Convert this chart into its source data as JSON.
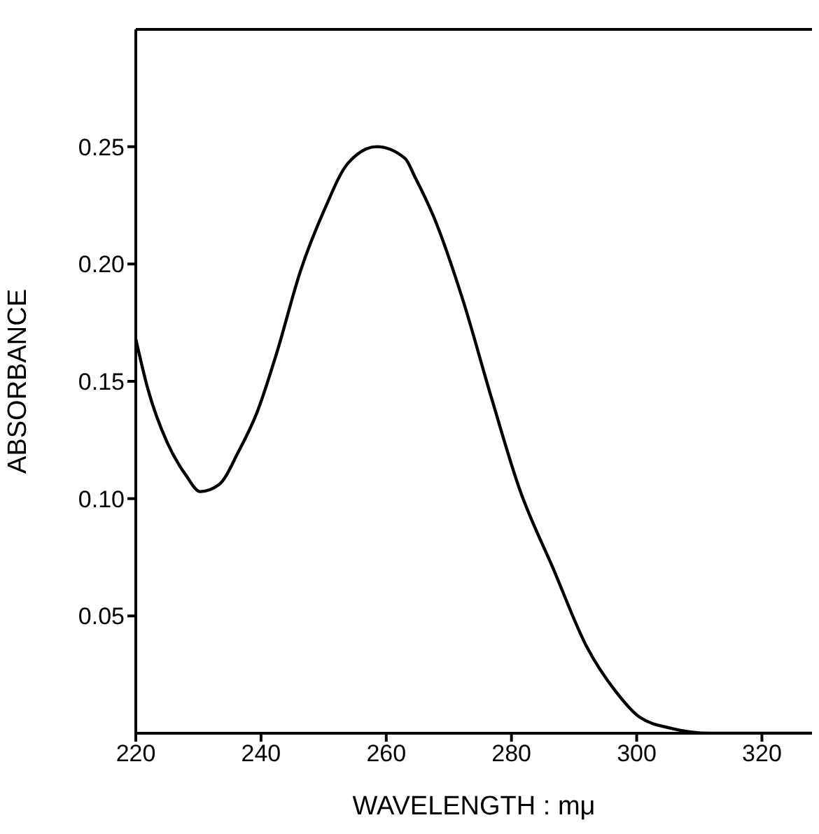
{
  "chart_data": {
    "type": "line",
    "xlabel": "WAVELENGTH : mμ",
    "ylabel": "ABSORBANCE",
    "xlim": [
      220,
      328
    ],
    "ylim": [
      0,
      0.3
    ],
    "xticks": [
      220,
      240,
      260,
      280,
      300,
      320
    ],
    "yticks": [
      0.05,
      {
        "value": 0.1,
        "label": "0.10"
      },
      0.15,
      {
        "value": 0.2,
        "label": "0.20"
      },
      0.25
    ],
    "grid": false,
    "legend": false,
    "marker": "none",
    "line_style": "solid",
    "series": [
      {
        "color": "#000000",
        "x": [
          220,
          221.9,
          225,
          228,
          230.3,
          233.3,
          236.4,
          239.4,
          242.5,
          246.3,
          250.1,
          253.9,
          258.5,
          263,
          264.6,
          267.6,
          272.2,
          276.8,
          281.3,
          286.7,
          292,
          296.6,
          300.4,
          305.7,
          311.8,
          328
        ],
        "values": [
          0.168,
          0.147,
          0.124,
          0.11,
          0.103,
          0.106,
          0.12,
          0.137,
          0.162,
          0.197,
          0.223,
          0.243,
          0.25,
          0.245,
          0.237,
          0.22,
          0.185,
          0.143,
          0.104,
          0.07,
          0.037,
          0.018,
          0.007,
          0.002,
          0,
          0
        ]
      }
    ]
  }
}
